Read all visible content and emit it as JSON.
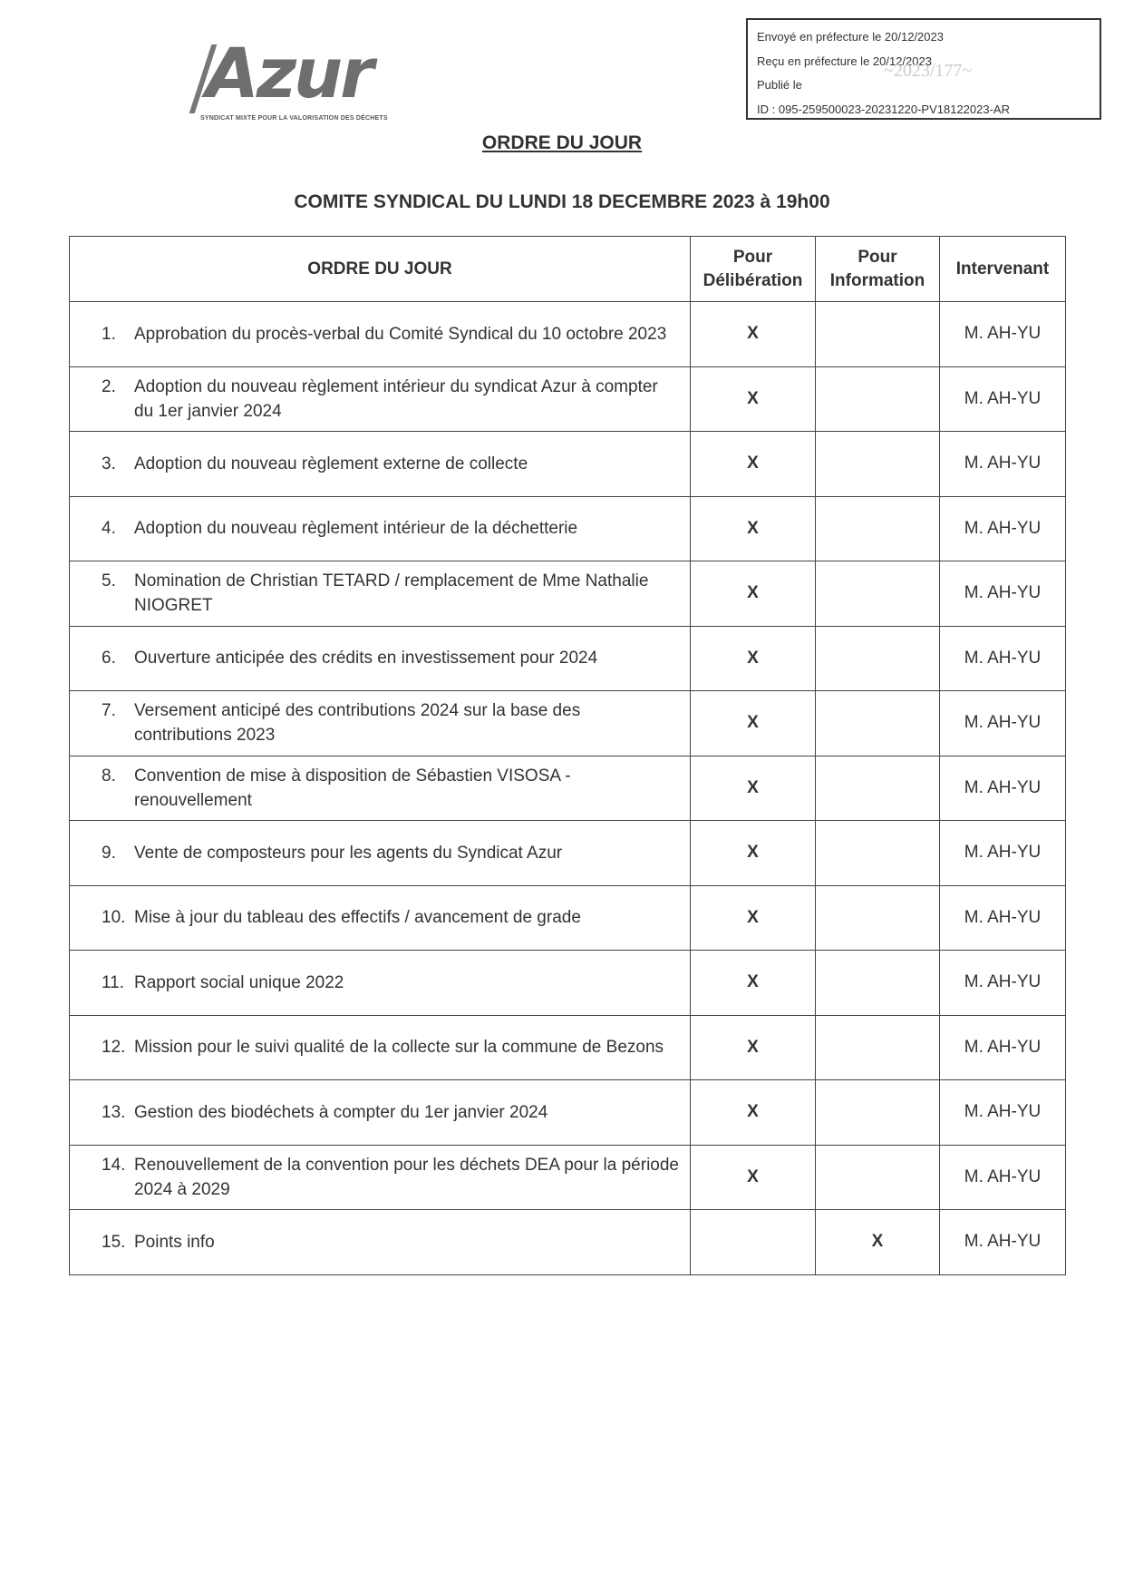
{
  "logo": {
    "word": "Azur",
    "tagline": "SYNDICAT MIXTE POUR LA VALORISATION DES DÉCHETS"
  },
  "stamp": {
    "lines": [
      "Envoyé en préfecture le 20/12/2023",
      "Reçu en préfecture le 20/12/2023",
      "Publié le",
      "ID : 095-259500023-20231220-PV18122023-AR"
    ],
    "mark": "~2023/177~"
  },
  "title": "ORDRE DU JOUR",
  "subtitle": "COMITE SYNDICAL DU LUNDI 18 DECEMBRE 2023 à 19h00",
  "table": {
    "headers": [
      "ORDRE DU JOUR",
      "Pour Délibération",
      "Pour Information",
      "Intervenant"
    ],
    "rows": [
      {
        "num": "1.",
        "text": "Approbation du procès-verbal du Comité Syndical du 10 octobre 2023",
        "deliberation": "X",
        "information": "",
        "speaker": "M. AH-YU"
      },
      {
        "num": "2.",
        "text": "Adoption du nouveau règlement intérieur du syndicat Azur à compter du 1er janvier 2024",
        "deliberation": "X",
        "information": "",
        "speaker": "M. AH-YU"
      },
      {
        "num": "3.",
        "text": "Adoption du nouveau règlement externe de collecte",
        "deliberation": "X",
        "information": "",
        "speaker": "M. AH-YU"
      },
      {
        "num": "4.",
        "text": "Adoption du nouveau règlement intérieur de la déchetterie",
        "deliberation": "X",
        "information": "",
        "speaker": "M. AH-YU"
      },
      {
        "num": "5.",
        "text": "Nomination de Christian TETARD / remplacement de Mme Nathalie NIOGRET",
        "deliberation": "X",
        "information": "",
        "speaker": "M. AH-YU"
      },
      {
        "num": "6.",
        "text": "Ouverture anticipée des crédits en investissement pour 2024",
        "deliberation": "X",
        "information": "",
        "speaker": "M. AH-YU"
      },
      {
        "num": "7.",
        "text": "Versement anticipé des contributions 2024 sur la base des contributions 2023",
        "deliberation": "X",
        "information": "",
        "speaker": "M. AH-YU"
      },
      {
        "num": "8.",
        "text": "Convention de mise à disposition de Sébastien VISOSA - renouvellement",
        "deliberation": "X",
        "information": "",
        "speaker": "M. AH-YU"
      },
      {
        "num": "9.",
        "text": "Vente de composteurs pour les agents du Syndicat Azur",
        "deliberation": "X",
        "information": "",
        "speaker": "M. AH-YU"
      },
      {
        "num": "10.",
        "text": "Mise à jour du tableau des effectifs / avancement de grade",
        "deliberation": "X",
        "information": "",
        "speaker": "M. AH-YU"
      },
      {
        "num": "11.",
        "text": "Rapport social unique 2022",
        "deliberation": "X",
        "information": "",
        "speaker": "M. AH-YU"
      },
      {
        "num": "12.",
        "text": "Mission pour le suivi qualité de la collecte sur la commune de Bezons",
        "deliberation": "X",
        "information": "",
        "speaker": "M. AH-YU"
      },
      {
        "num": "13.",
        "text": "Gestion des biodéchets à compter du 1er janvier 2024",
        "deliberation": "X",
        "information": "",
        "speaker": "M. AH-YU"
      },
      {
        "num": "14.",
        "text": "Renouvellement de la convention pour les déchets DEA pour la période 2024 à 2029",
        "deliberation": "X",
        "information": "",
        "speaker": "M. AH-YU"
      },
      {
        "num": "15.",
        "text": "Points info",
        "deliberation": "",
        "information": "X",
        "speaker": "M. AH-YU"
      }
    ]
  }
}
